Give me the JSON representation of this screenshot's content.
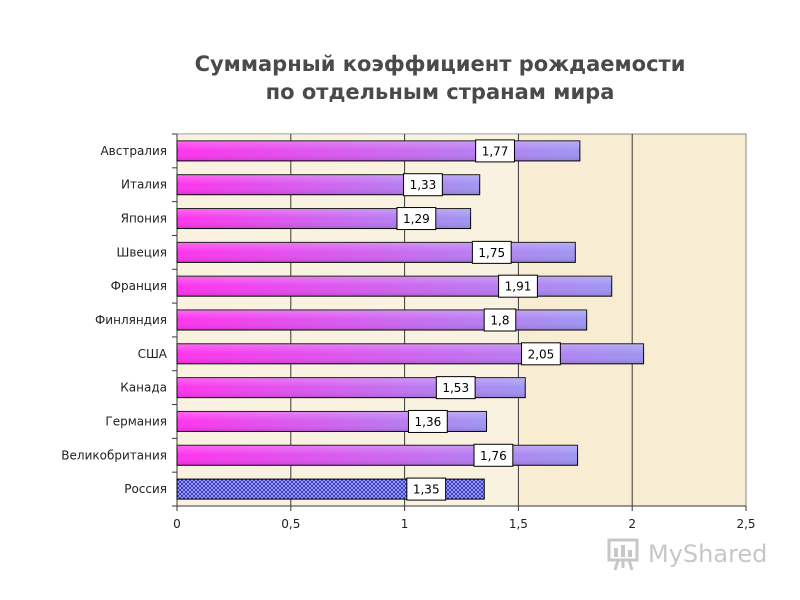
{
  "chart_data": {
    "type": "bar",
    "orientation": "horizontal",
    "title": "Суммарный коэффициент рождаемости",
    "subtitle": "по отдельным странам мира",
    "categories": [
      "Австралия",
      "Италия",
      "Япония",
      "Швеция",
      "Франция",
      "Финляндия",
      "США",
      "Канада",
      "Германия",
      "Великобритания",
      "Россия"
    ],
    "values": [
      1.77,
      1.33,
      1.29,
      1.75,
      1.91,
      1.8,
      2.05,
      1.53,
      1.36,
      1.76,
      1.35
    ],
    "data_labels": [
      "1,77",
      "1,33",
      "1,29",
      "1,75",
      "1,91",
      "1,8",
      "2,05",
      "1,53",
      "1,36",
      "1,76",
      "1,35"
    ],
    "xlim": [
      0,
      2.5
    ],
    "x_ticks": [
      0,
      0.5,
      1,
      1.5,
      2,
      2.5
    ],
    "x_tick_labels": [
      "0",
      "0,5",
      "1",
      "1,5",
      "2",
      "2,5"
    ],
    "xlabel": "",
    "ylabel": "",
    "grid": "vertical",
    "highlight_category": "Россия",
    "colors": {
      "plot_background": "#f8ecd2",
      "bar_gradient_start": "#ff33ee",
      "bar_gradient_end": "#9f96f2",
      "highlight_fill": "#2020a8",
      "bar_outline": "#000000"
    }
  },
  "watermark": {
    "text": "MyShared",
    "icon": "presentation-board-icon"
  }
}
